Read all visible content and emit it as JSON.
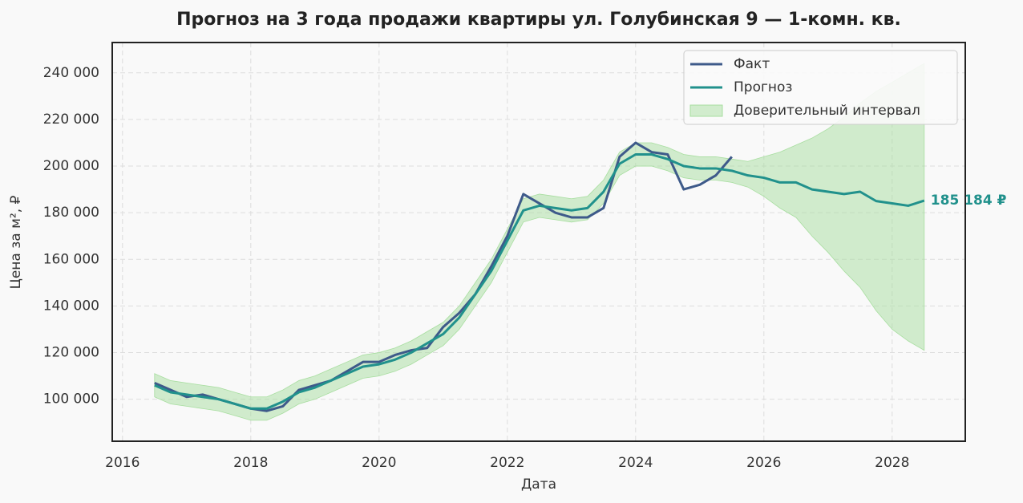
{
  "chart_data": {
    "type": "line",
    "title": "Прогноз на 3 года продажи квартиры  ул. Голубинская 9 — 1-комн. кв.",
    "x_label": "Дата",
    "y_label": "Цена за м², ₽",
    "xlim": [
      2015.84,
      2029.14
    ],
    "ylim": [
      82000,
      253000
    ],
    "xticks": [
      2016,
      2018,
      2020,
      2022,
      2024,
      2026,
      2028
    ],
    "yticks": [
      {
        "value": 100000,
        "label": "100 000"
      },
      {
        "value": 120000,
        "label": "120 000"
      },
      {
        "value": 140000,
        "label": "140 000"
      },
      {
        "value": 160000,
        "label": "160 000"
      },
      {
        "value": 180000,
        "label": "180 000"
      },
      {
        "value": 200000,
        "label": "200 000"
      },
      {
        "value": 220000,
        "label": "220 000"
      },
      {
        "value": 240000,
        "label": "240 000"
      }
    ],
    "grid": true,
    "legend": "upper right",
    "x": [
      2016.5,
      2016.75,
      2017,
      2017.25,
      2017.5,
      2017.75,
      2018,
      2018.25,
      2018.5,
      2018.75,
      2019,
      2019.25,
      2019.5,
      2019.75,
      2020,
      2020.25,
      2020.5,
      2020.75,
      2021,
      2021.25,
      2021.5,
      2021.75,
      2022,
      2022.25,
      2022.5,
      2022.75,
      2023,
      2023.25,
      2023.5,
      2023.75,
      2024,
      2024.25,
      2024.5,
      2024.75,
      2025,
      2025.25,
      2025.5,
      2025.75,
      2026,
      2026.25,
      2026.5,
      2026.75,
      2027,
      2027.25,
      2027.5,
      2027.75,
      2028,
      2028.25,
      2028.5
    ],
    "series": [
      {
        "name": "Факт",
        "color": "#3e5a8a",
        "values": [
          107000,
          104000,
          101000,
          102000,
          100000,
          98000,
          96000,
          95000,
          97000,
          104000,
          106000,
          108000,
          112000,
          116000,
          116000,
          119000,
          121000,
          122000,
          131000,
          137000,
          145000,
          157000,
          170000,
          188000,
          184000,
          180000,
          178000,
          178000,
          182000,
          204000,
          210000,
          206000,
          205000,
          190000,
          192000,
          196000,
          204000,
          null,
          null,
          null,
          null,
          null,
          null,
          null,
          null,
          null,
          null,
          null,
          null
        ]
      },
      {
        "name": "Прогноз",
        "color": "#21918c",
        "values": [
          106000,
          103000,
          102000,
          101000,
          100000,
          98000,
          96000,
          96000,
          99000,
          103000,
          105000,
          108000,
          111000,
          114000,
          115000,
          117000,
          120000,
          124000,
          128000,
          135000,
          145000,
          155000,
          168000,
          181000,
          183000,
          182000,
          181000,
          182000,
          189000,
          201000,
          205000,
          205000,
          203000,
          200000,
          199000,
          199000,
          198000,
          196000,
          195000,
          193000,
          193000,
          190000,
          189000,
          188000,
          189000,
          185000,
          184000,
          183000,
          185184
        ]
      }
    ],
    "band": {
      "name": "Доверительный интервал",
      "color": "#a8dea0",
      "lower": [
        101000,
        98000,
        97000,
        96000,
        95000,
        93000,
        91000,
        91000,
        94000,
        98000,
        100000,
        103000,
        106000,
        109000,
        110000,
        112000,
        115000,
        119000,
        123000,
        130000,
        140000,
        150000,
        163000,
        176000,
        178000,
        177000,
        176000,
        177000,
        184000,
        196000,
        200000,
        200000,
        198000,
        195000,
        194000,
        194000,
        193000,
        191000,
        187000,
        182000,
        178000,
        170000,
        163000,
        155000,
        148000,
        138000,
        130000,
        125000,
        121000
      ],
      "upper": [
        111000,
        108000,
        107000,
        106000,
        105000,
        103000,
        101000,
        101000,
        104000,
        108000,
        110000,
        113000,
        116000,
        119000,
        120000,
        122000,
        125000,
        129000,
        133000,
        140000,
        150000,
        160000,
        173000,
        186000,
        188000,
        187000,
        186000,
        187000,
        194000,
        206000,
        210000,
        210000,
        208000,
        205000,
        204000,
        204000,
        203000,
        202000,
        204000,
        206000,
        209000,
        212000,
        216000,
        221000,
        227000,
        232000,
        236000,
        240000,
        244000
      ]
    },
    "annotation": "185 184 ₽"
  }
}
